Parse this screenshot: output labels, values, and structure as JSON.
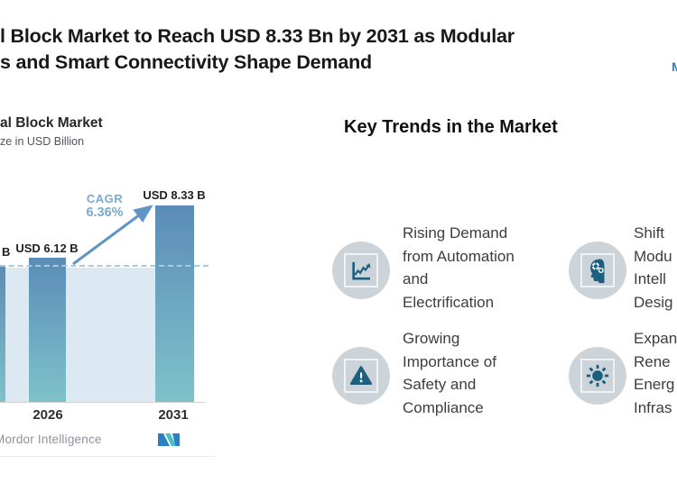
{
  "header": {
    "title_line1": "l Block Market to Reach USD 8.33 Bn by 2031 as Modular",
    "title_line2": "s and Smart Connectivity Shape Demand",
    "top_right_logo_fragment": "M"
  },
  "chart": {
    "title": "al Block Market",
    "subtitle": "ze in USD Billion",
    "cagr_label": "CAGR",
    "cagr_value": "6.36%",
    "source_text": "Mordor Intelligence"
  },
  "chart_data": {
    "type": "bar",
    "categories": [
      "",
      "2026",
      "2031"
    ],
    "values": [
      5.75,
      6.12,
      8.33
    ],
    "bar_labels": [
      "B",
      "USD 6.12 B",
      "USD 8.33 B"
    ],
    "title": "al Block Market",
    "subtitle": "ze in USD Billion",
    "annotation": {
      "label": "CAGR",
      "value": "6.36%"
    },
    "ylim": [
      0,
      9.2
    ],
    "dashed_reference_level": 5.75,
    "grid": false,
    "legend": false,
    "source": "Mordor Intelligence"
  },
  "trends": {
    "heading": "Key Trends in the Market",
    "items": [
      {
        "icon": "line-chart-icon",
        "text": "Rising Demand\nfrom Automation\nand\nElectrification"
      },
      {
        "icon": "head-gears-icon",
        "text": "Shift\nModu\nIntell\nDesig"
      },
      {
        "icon": "warning-triangle-icon",
        "text": "Growing\nImportance of\nSafety and\nCompliance"
      },
      {
        "icon": "sun-icon",
        "text": "Expan\nRene\nEnerg\nInfras"
      }
    ]
  },
  "colors": {
    "bar_top": "#5b8cb8",
    "bar_bottom": "#7fc2c9",
    "band": "#dce9f3",
    "dashed_line": "#a9c9dd",
    "cagr_text": "#7aa9d2",
    "arrow": "#5e95c5",
    "icon_circle": "#ccd3d9",
    "icon_glyph": "#1d5f80",
    "logo_blue": "#2d7fc1",
    "logo_teal": "#45c2c4",
    "source_text": "#8b929c"
  }
}
